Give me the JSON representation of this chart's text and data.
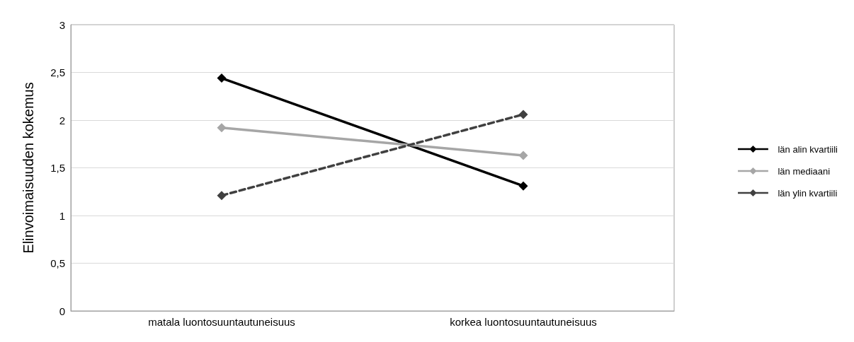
{
  "chart_data": {
    "type": "line",
    "ylabel": "Elinvoimaisuuden kokemus",
    "categories": [
      "matala luontosuuntautuneisuus",
      "korkea luontosuuntautuneisuus"
    ],
    "series": [
      {
        "name": "län alin kvartiili",
        "color": "#000000",
        "values": [
          2.44,
          1.31
        ],
        "line_style": "solid"
      },
      {
        "name": "län mediaani",
        "color": "#a6a6a6",
        "values": [
          1.92,
          1.63
        ],
        "line_style": "solid"
      },
      {
        "name": "län ylin kvartiili",
        "color": "#404040",
        "values": [
          1.21,
          2.06
        ],
        "line_style": "dashed"
      }
    ],
    "ylim": [
      0,
      3
    ],
    "yticks": [
      0,
      {
        "value": 0.5,
        "label": "0,5"
      },
      1,
      {
        "value": 1.5,
        "label": "1,5"
      },
      2,
      {
        "value": 2.5,
        "label": "2,5"
      },
      3
    ],
    "grid": "y",
    "legend": "right",
    "marker": "diamond"
  }
}
